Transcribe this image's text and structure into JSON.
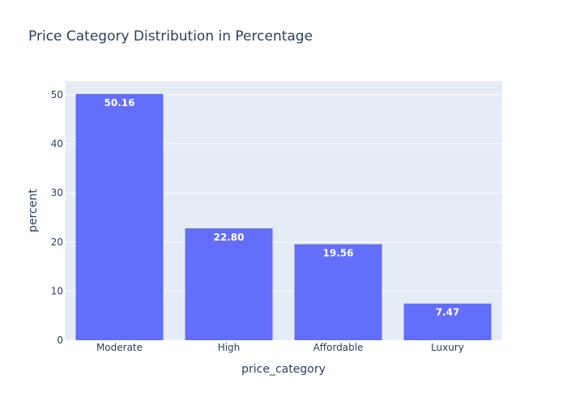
{
  "chart_data": {
    "type": "bar",
    "title": "Price Category Distribution in Percentage",
    "xlabel": "price_category",
    "ylabel": "percent",
    "categories": [
      "Moderate",
      "High",
      "Affordable",
      "Luxury"
    ],
    "values": [
      50.16,
      22.8,
      19.56,
      7.47
    ],
    "data_labels": [
      "50.16",
      "22.80",
      "19.56",
      "7.47"
    ],
    "yticks": [
      0,
      10,
      20,
      30,
      40,
      50
    ],
    "ylim": [
      0,
      52.8
    ],
    "grid": true,
    "legend": "none",
    "colors": {
      "bar": "#636efa",
      "plot_background": "#e5ecf6",
      "gridline": "#ffffff",
      "text": "#2a3f5f",
      "data_label": "#ffffff"
    }
  }
}
